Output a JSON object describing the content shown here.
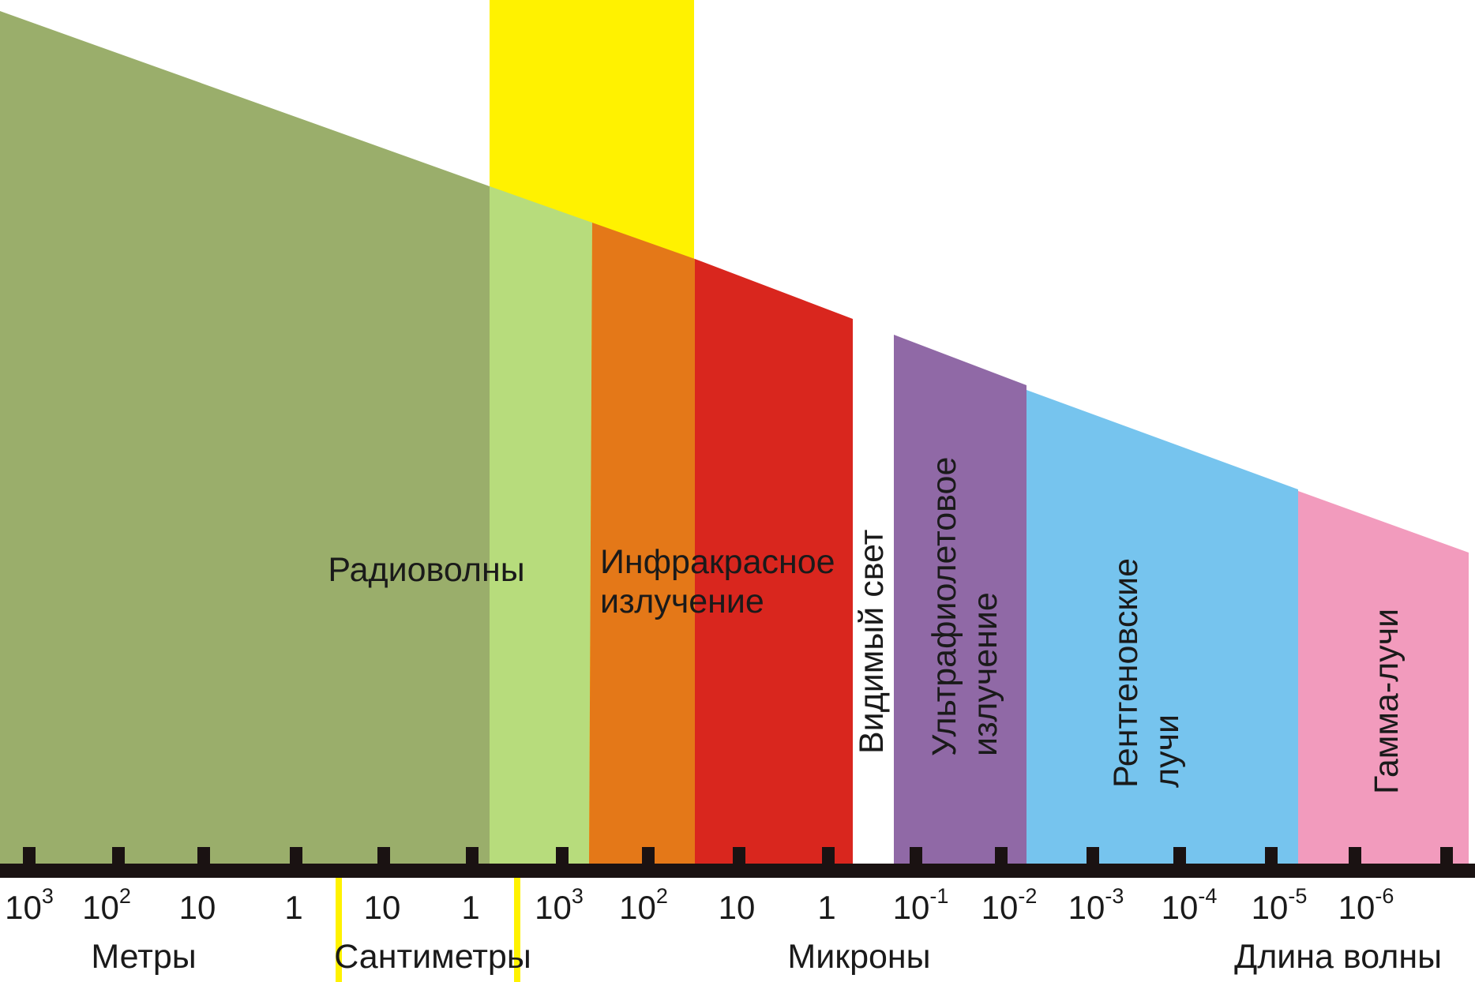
{
  "colors": {
    "radio": "#9aae6b",
    "microwave": "#b7dc7c",
    "infrared_near": "#e47818",
    "infrared_far": "#d9261e",
    "ultraviolet": "#9069a6",
    "xray": "#76c4ee",
    "gamma": "#f29bbd",
    "highlight": "#fff200",
    "axis": "#1a1212"
  },
  "bands": {
    "radio": "Радиоволны",
    "infrared_line1": "Инфракрасное",
    "infrared_line2": "излучение",
    "visible": "Видимый свет",
    "ultraviolet_line1": "Ультрафиолетовое",
    "ultraviolet_line2": "излучение",
    "xray_line1": "Рентгеновские",
    "xray_line2": "лучи",
    "gamma": "Гамма-лучи"
  },
  "ticks": [
    {
      "base": "10",
      "exp": "3"
    },
    {
      "base": "10",
      "exp": "2"
    },
    {
      "base": "10",
      "exp": ""
    },
    {
      "base": "1",
      "exp": ""
    },
    {
      "base": "10",
      "exp": ""
    },
    {
      "base": "1",
      "exp": ""
    },
    {
      "base": "10",
      "exp": "3"
    },
    {
      "base": "10",
      "exp": "2"
    },
    {
      "base": "10",
      "exp": ""
    },
    {
      "base": "1",
      "exp": ""
    },
    {
      "base": "10",
      "exp": "-1"
    },
    {
      "base": "10",
      "exp": "-2"
    },
    {
      "base": "10",
      "exp": "-3"
    },
    {
      "base": "10",
      "exp": "-4"
    },
    {
      "base": "10",
      "exp": "-5"
    },
    {
      "base": "10",
      "exp": "-6"
    }
  ],
  "units": {
    "meters": "Метры",
    "centimeters": "Сантиметры",
    "microns": "Микроны",
    "wavelength": "Длина волны"
  }
}
